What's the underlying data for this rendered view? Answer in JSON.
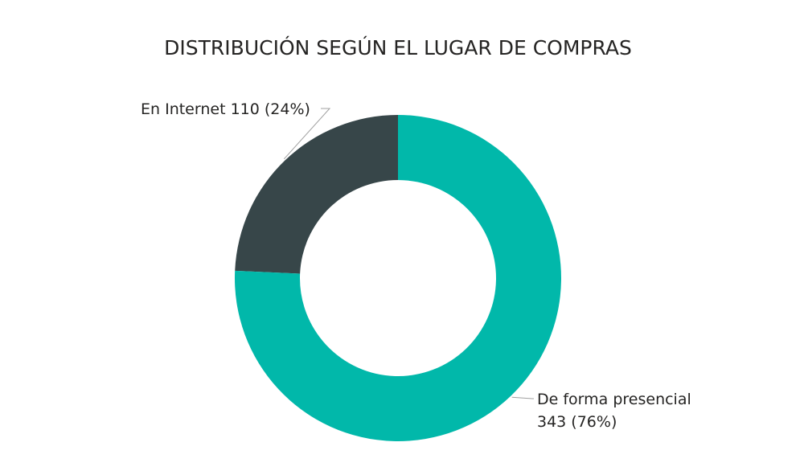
{
  "chart_data": {
    "type": "pie",
    "variant": "donut",
    "title": "DISTRIBUCIÓN SEGÚN EL LUGAR DE COMPRAS",
    "slices": [
      {
        "name": "En Internet",
        "value": 110,
        "percent_label": "(24%)",
        "color": "#374649",
        "label_lines": [
          "En Internet 110 (24%)"
        ]
      },
      {
        "name": "De forma presencial",
        "value": 343,
        "percent_label": "(76%)",
        "color": "#01B8AA",
        "label_lines": [
          "De forma presencial",
          "343 (76%)"
        ]
      }
    ],
    "start_angle_deg": 0,
    "direction": "counterclockwise",
    "legend": "none"
  }
}
